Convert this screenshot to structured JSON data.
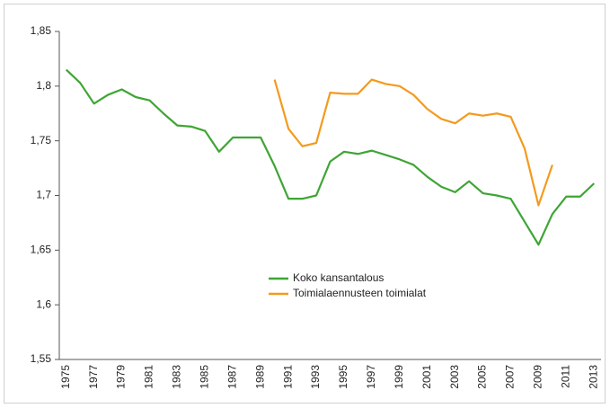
{
  "chart_data": {
    "type": "line",
    "categories": [
      "1975",
      null,
      "1977",
      null,
      "1979",
      null,
      "1981",
      null,
      "1983",
      null,
      "1985",
      null,
      "1987",
      null,
      "1989",
      null,
      "1991",
      null,
      "1993",
      null,
      "1995",
      null,
      "1997",
      null,
      "1999",
      null,
      "2001",
      null,
      "2003",
      null,
      "2005",
      null,
      "2007",
      null,
      "2009",
      null,
      "2011",
      null,
      "2013"
    ],
    "series": [
      {
        "name": "Koko kansantalous",
        "color": "#3fa535",
        "values": [
          1.815,
          1.803,
          1.784,
          1.792,
          1.797,
          1.79,
          1.787,
          1.775,
          1.764,
          1.763,
          1.759,
          1.74,
          1.753,
          1.753,
          1.753,
          1.727,
          1.697,
          1.697,
          1.7,
          1.731,
          1.74,
          1.738,
          1.741,
          1.737,
          1.733,
          1.728,
          1.717,
          1.708,
          1.703,
          1.713,
          1.702,
          1.7,
          1.697,
          1.676,
          1.655,
          1.683,
          1.699,
          1.699,
          1.711
        ]
      },
      {
        "name": "Toimialaennusteen toimialat",
        "color": "#f39a1e",
        "values": [
          null,
          null,
          null,
          null,
          null,
          null,
          null,
          null,
          null,
          null,
          null,
          null,
          null,
          null,
          null,
          1.806,
          1.761,
          1.745,
          1.748,
          1.794,
          1.793,
          1.793,
          1.806,
          1.802,
          1.8,
          1.792,
          1.779,
          1.77,
          1.766,
          1.775,
          1.773,
          1.775,
          1.772,
          1.743,
          1.691,
          1.728,
          null,
          null,
          null
        ]
      }
    ],
    "ylim": [
      1.55,
      1.85
    ],
    "yticks": [
      {
        "value": 1.55,
        "label": "1,55"
      },
      {
        "value": 1.6,
        "label": "1,6"
      },
      {
        "value": 1.65,
        "label": "1,65"
      },
      {
        "value": 1.7,
        "label": "1,7"
      },
      {
        "value": 1.75,
        "label": "1,75"
      },
      {
        "value": 1.8,
        "label": "1,8"
      },
      {
        "value": 1.85,
        "label": "1,85"
      }
    ],
    "grid": false
  }
}
